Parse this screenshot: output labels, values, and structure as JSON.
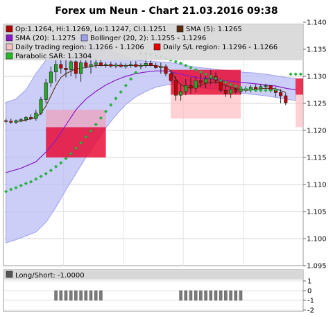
{
  "chart_data": {
    "type": "candlestick",
    "title": "Forex um Neun - Chart 21.03.2016 09:38",
    "legend": [
      {
        "label": "Op:1.1264, Hi:1.1269, Lo:1.1247, Cl:1.1251",
        "color": "#b40000"
      },
      {
        "label": "SMA (5): 1.1265",
        "color": "#5a2a0e"
      },
      {
        "label": "SMA (20): 1.1275",
        "color": "#8a18c8"
      },
      {
        "label": "Bollinger (20, 2): 1.1255 - 1.1296",
        "color": "#9ea0ee"
      },
      {
        "label": "Daily trading region: 1.1266 - 1.1206",
        "color": "#f4c0c4"
      },
      {
        "label": "Daily S/L region: 1.1296 - 1.1266",
        "color": "#e80000"
      },
      {
        "label": "Parabolic SAR: 1.1304",
        "color": "#22bb22"
      }
    ],
    "y_axis": {
      "min": 1.095,
      "max": 1.14,
      "ticks": [
        "1.095",
        "1.100",
        "1.105",
        "1.110",
        "1.115",
        "1.120",
        "1.125",
        "1.130",
        "1.135",
        "1.140"
      ]
    },
    "x_axis": {
      "min": 0,
      "max": 60
    },
    "candles": [
      {
        "o": 1.1218,
        "h": 1.1222,
        "l": 1.1213,
        "c": 1.1217
      },
      {
        "o": 1.1217,
        "h": 1.1222,
        "l": 1.1212,
        "c": 1.1215
      },
      {
        "o": 1.1215,
        "h": 1.122,
        "l": 1.1212,
        "c": 1.1218
      },
      {
        "o": 1.1218,
        "h": 1.1223,
        "l": 1.1215,
        "c": 1.122
      },
      {
        "o": 1.122,
        "h": 1.1227,
        "l": 1.1216,
        "c": 1.1224
      },
      {
        "o": 1.1224,
        "h": 1.123,
        "l": 1.1219,
        "c": 1.1222
      },
      {
        "o": 1.1222,
        "h": 1.1238,
        "l": 1.1218,
        "c": 1.1232
      },
      {
        "o": 1.1232,
        "h": 1.1262,
        "l": 1.1228,
        "c": 1.1257
      },
      {
        "o": 1.1257,
        "h": 1.1295,
        "l": 1.125,
        "c": 1.1288
      },
      {
        "o": 1.1288,
        "h": 1.1318,
        "l": 1.128,
        "c": 1.1308
      },
      {
        "o": 1.1308,
        "h": 1.1332,
        "l": 1.129,
        "c": 1.1322
      },
      {
        "o": 1.1322,
        "h": 1.1348,
        "l": 1.1305,
        "c": 1.1315
      },
      {
        "o": 1.1315,
        "h": 1.1332,
        "l": 1.1298,
        "c": 1.1312
      },
      {
        "o": 1.1312,
        "h": 1.1334,
        "l": 1.13,
        "c": 1.1327
      },
      {
        "o": 1.1327,
        "h": 1.1338,
        "l": 1.1296,
        "c": 1.1305
      },
      {
        "o": 1.1305,
        "h": 1.1332,
        "l": 1.129,
        "c": 1.1325
      },
      {
        "o": 1.1325,
        "h": 1.1345,
        "l": 1.1315,
        "c": 1.1318
      },
      {
        "o": 1.1318,
        "h": 1.1334,
        "l": 1.1305,
        "c": 1.1322
      },
      {
        "o": 1.1322,
        "h": 1.1333,
        "l": 1.1315,
        "c": 1.1325
      },
      {
        "o": 1.1325,
        "h": 1.1332,
        "l": 1.1318,
        "c": 1.132
      },
      {
        "o": 1.132,
        "h": 1.1326,
        "l": 1.1316,
        "c": 1.1322
      },
      {
        "o": 1.1322,
        "h": 1.1327,
        "l": 1.1316,
        "c": 1.1319
      },
      {
        "o": 1.1319,
        "h": 1.1325,
        "l": 1.1315,
        "c": 1.1321
      },
      {
        "o": 1.1321,
        "h": 1.1326,
        "l": 1.1316,
        "c": 1.1318
      },
      {
        "o": 1.1318,
        "h": 1.1324,
        "l": 1.1314,
        "c": 1.132
      },
      {
        "o": 1.132,
        "h": 1.1328,
        "l": 1.1316,
        "c": 1.1322
      },
      {
        "o": 1.1322,
        "h": 1.1328,
        "l": 1.1316,
        "c": 1.1318
      },
      {
        "o": 1.1318,
        "h": 1.1324,
        "l": 1.1313,
        "c": 1.132
      },
      {
        "o": 1.132,
        "h": 1.134,
        "l": 1.1316,
        "c": 1.1324
      },
      {
        "o": 1.1324,
        "h": 1.133,
        "l": 1.1318,
        "c": 1.132
      },
      {
        "o": 1.132,
        "h": 1.1325,
        "l": 1.1314,
        "c": 1.1316
      },
      {
        "o": 1.1316,
        "h": 1.1325,
        "l": 1.1305,
        "c": 1.1318
      },
      {
        "o": 1.1318,
        "h": 1.1322,
        "l": 1.13,
        "c": 1.1305
      },
      {
        "o": 1.1305,
        "h": 1.1312,
        "l": 1.129,
        "c": 1.1292
      },
      {
        "o": 1.1292,
        "h": 1.13,
        "l": 1.1255,
        "c": 1.1265
      },
      {
        "o": 1.1265,
        "h": 1.1285,
        "l": 1.1255,
        "c": 1.1272
      },
      {
        "o": 1.1272,
        "h": 1.1295,
        "l": 1.1265,
        "c": 1.1283
      },
      {
        "o": 1.1283,
        "h": 1.1298,
        "l": 1.1268,
        "c": 1.1278
      },
      {
        "o": 1.1278,
        "h": 1.13,
        "l": 1.127,
        "c": 1.1292
      },
      {
        "o": 1.1292,
        "h": 1.1305,
        "l": 1.128,
        "c": 1.1288
      },
      {
        "o": 1.1288,
        "h": 1.1302,
        "l": 1.1278,
        "c": 1.1295
      },
      {
        "o": 1.1295,
        "h": 1.1312,
        "l": 1.1285,
        "c": 1.13
      },
      {
        "o": 1.13,
        "h": 1.1307,
        "l": 1.1286,
        "c": 1.1292
      },
      {
        "o": 1.1292,
        "h": 1.1296,
        "l": 1.127,
        "c": 1.1274
      },
      {
        "o": 1.1274,
        "h": 1.1284,
        "l": 1.1262,
        "c": 1.1268
      },
      {
        "o": 1.1268,
        "h": 1.128,
        "l": 1.126,
        "c": 1.1276
      },
      {
        "o": 1.1276,
        "h": 1.1282,
        "l": 1.1268,
        "c": 1.1272
      },
      {
        "o": 1.1272,
        "h": 1.128,
        "l": 1.1266,
        "c": 1.1277
      },
      {
        "o": 1.1277,
        "h": 1.1282,
        "l": 1.127,
        "c": 1.1275
      },
      {
        "o": 1.1275,
        "h": 1.1284,
        "l": 1.127,
        "c": 1.128
      },
      {
        "o": 1.128,
        "h": 1.1285,
        "l": 1.1274,
        "c": 1.1277
      },
      {
        "o": 1.1277,
        "h": 1.1286,
        "l": 1.1272,
        "c": 1.1281
      },
      {
        "o": 1.1281,
        "h": 1.1286,
        "l": 1.1276,
        "c": 1.1283
      },
      {
        "o": 1.1283,
        "h": 1.1284,
        "l": 1.127,
        "c": 1.1274
      },
      {
        "o": 1.1274,
        "h": 1.128,
        "l": 1.1262,
        "c": 1.127
      },
      {
        "o": 1.127,
        "h": 1.1276,
        "l": 1.125,
        "c": 1.1264
      },
      {
        "o": 1.1264,
        "h": 1.1269,
        "l": 1.1247,
        "c": 1.1251
      }
    ],
    "sma5": [
      [
        2,
        1.1216
      ],
      [
        4,
        1.1219
      ],
      [
        6,
        1.1224
      ],
      [
        7,
        1.1232
      ],
      [
        8,
        1.1245
      ],
      [
        9,
        1.1264
      ],
      [
        10,
        1.1283
      ],
      [
        11,
        1.1298
      ],
      [
        12,
        1.1305
      ],
      [
        14,
        1.1314
      ],
      [
        16,
        1.1316
      ],
      [
        18,
        1.132
      ],
      [
        20,
        1.132
      ],
      [
        22,
        1.132
      ],
      [
        24,
        1.132
      ],
      [
        26,
        1.132
      ],
      [
        28,
        1.132
      ],
      [
        30,
        1.132
      ],
      [
        32,
        1.1316
      ],
      [
        33,
        1.131
      ],
      [
        34,
        1.1295
      ],
      [
        35,
        1.1285
      ],
      [
        36,
        1.1279
      ],
      [
        38,
        1.128
      ],
      [
        40,
        1.1287
      ],
      [
        42,
        1.129
      ],
      [
        44,
        1.1283
      ],
      [
        46,
        1.1277
      ],
      [
        48,
        1.1274
      ],
      [
        50,
        1.1276
      ],
      [
        52,
        1.1278
      ],
      [
        54,
        1.1277
      ],
      [
        56,
        1.127
      ]
    ],
    "sma20": [
      [
        0,
        1.1122
      ],
      [
        3,
        1.113
      ],
      [
        6,
        1.1142
      ],
      [
        8,
        1.116
      ],
      [
        10,
        1.1182
      ],
      [
        12,
        1.121
      ],
      [
        14,
        1.1238
      ],
      [
        16,
        1.1258
      ],
      [
        18,
        1.1272
      ],
      [
        20,
        1.1284
      ],
      [
        22,
        1.1293
      ],
      [
        24,
        1.13
      ],
      [
        26,
        1.1305
      ],
      [
        28,
        1.1308
      ],
      [
        30,
        1.131
      ],
      [
        32,
        1.131
      ],
      [
        34,
        1.1306
      ],
      [
        36,
        1.1302
      ],
      [
        38,
        1.1298
      ],
      [
        40,
        1.1296
      ],
      [
        42,
        1.1294
      ],
      [
        44,
        1.1292
      ],
      [
        46,
        1.129
      ],
      [
        48,
        1.1288
      ],
      [
        50,
        1.1286
      ],
      [
        52,
        1.1284
      ],
      [
        54,
        1.1282
      ],
      [
        56,
        1.1278
      ],
      [
        58,
        1.1275
      ]
    ],
    "boll_upper": [
      [
        0,
        1.1252
      ],
      [
        2,
        1.1258
      ],
      [
        4,
        1.1275
      ],
      [
        6,
        1.1305
      ],
      [
        8,
        1.133
      ],
      [
        10,
        1.1352
      ],
      [
        12,
        1.1366
      ],
      [
        14,
        1.1372
      ],
      [
        16,
        1.137
      ],
      [
        18,
        1.1363
      ],
      [
        20,
        1.1352
      ],
      [
        22,
        1.1343
      ],
      [
        24,
        1.1336
      ],
      [
        26,
        1.133
      ],
      [
        28,
        1.1328
      ],
      [
        30,
        1.1327
      ],
      [
        32,
        1.1326
      ],
      [
        34,
        1.1324
      ],
      [
        36,
        1.132
      ],
      [
        38,
        1.1317
      ],
      [
        40,
        1.1315
      ],
      [
        42,
        1.1313
      ],
      [
        44,
        1.1311
      ],
      [
        46,
        1.1309
      ],
      [
        48,
        1.1307
      ],
      [
        50,
        1.1306
      ],
      [
        52,
        1.1304
      ],
      [
        54,
        1.1301
      ],
      [
        56,
        1.1298
      ],
      [
        58,
        1.1296
      ]
    ],
    "boll_lower": [
      [
        0,
        1.0992
      ],
      [
        2,
        1.0998
      ],
      [
        4,
        1.1005
      ],
      [
        6,
        1.1012
      ],
      [
        8,
        1.103
      ],
      [
        10,
        1.1058
      ],
      [
        12,
        1.109
      ],
      [
        14,
        1.112
      ],
      [
        16,
        1.115
      ],
      [
        18,
        1.1178
      ],
      [
        20,
        1.1205
      ],
      [
        22,
        1.1228
      ],
      [
        24,
        1.1248
      ],
      [
        26,
        1.1262
      ],
      [
        28,
        1.1272
      ],
      [
        30,
        1.128
      ],
      [
        32,
        1.1284
      ],
      [
        34,
        1.1286
      ],
      [
        36,
        1.1284
      ],
      [
        38,
        1.128
      ],
      [
        40,
        1.1278
      ],
      [
        42,
        1.1276
      ],
      [
        44,
        1.1272
      ],
      [
        46,
        1.127
      ],
      [
        48,
        1.1268
      ],
      [
        50,
        1.1266
      ],
      [
        52,
        1.1264
      ],
      [
        54,
        1.1261
      ],
      [
        56,
        1.1258
      ],
      [
        58,
        1.1255
      ]
    ],
    "parabolic_sar": [
      [
        0,
        1.1087
      ],
      [
        1,
        1.1091
      ],
      [
        2,
        1.1094
      ],
      [
        3,
        1.1098
      ],
      [
        4,
        1.1102
      ],
      [
        5,
        1.1105
      ],
      [
        6,
        1.111
      ],
      [
        7,
        1.1115
      ],
      [
        8,
        1.112
      ],
      [
        9,
        1.1126
      ],
      [
        10,
        1.1133
      ],
      [
        11,
        1.114
      ],
      [
        12,
        1.1148
      ],
      [
        13,
        1.1157
      ],
      [
        14,
        1.1167
      ],
      [
        15,
        1.1177
      ],
      [
        16,
        1.1188
      ],
      [
        17,
        1.1199
      ],
      [
        18,
        1.1211
      ],
      [
        19,
        1.1223
      ],
      [
        20,
        1.1235
      ],
      [
        21,
        1.1247
      ],
      [
        22,
        1.1259
      ],
      [
        23,
        1.1271
      ],
      [
        24,
        1.1283
      ],
      [
        25,
        1.1295
      ],
      [
        26,
        1.1307
      ],
      [
        27,
        1.1343
      ],
      [
        28,
        1.1342
      ],
      [
        29,
        1.134
      ],
      [
        30,
        1.1338
      ],
      [
        31,
        1.1336
      ],
      [
        32,
        1.1333
      ],
      [
        33,
        1.133
      ],
      [
        34,
        1.1327
      ],
      [
        35,
        1.1324
      ],
      [
        36,
        1.132
      ],
      [
        37,
        1.1316
      ],
      [
        38,
        1.1312
      ],
      [
        39,
        1.1308
      ],
      [
        40,
        1.1304
      ],
      [
        41,
        1.13
      ],
      [
        42,
        1.1296
      ],
      [
        43,
        1.1292
      ],
      [
        44,
        1.1289
      ],
      [
        45,
        1.1285
      ],
      [
        46,
        1.1282
      ],
      [
        47,
        1.1279
      ],
      [
        48,
        1.1276
      ],
      [
        49,
        1.1275
      ],
      [
        50,
        1.1274
      ],
      [
        51,
        1.1274
      ],
      [
        52,
        1.1274
      ],
      [
        53,
        1.1274
      ],
      [
        54,
        1.1275
      ],
      [
        57,
        1.1304
      ],
      [
        58,
        1.1304
      ],
      [
        59,
        1.1304
      ]
    ],
    "regions": [
      {
        "kind": "trading",
        "x0": 8.5,
        "x1": 20.5,
        "y0": 1.1206,
        "y1": 1.1238
      },
      {
        "kind": "stoploss",
        "x0": 8.5,
        "x1": 20.5,
        "y0": 1.115,
        "y1": 1.1206
      },
      {
        "kind": "stoploss_light",
        "x0": 8.5,
        "x1": 20.5,
        "y0": 1.1206,
        "y1": 1.1238
      },
      {
        "kind": "trading",
        "x0": 33.5,
        "x1": 47.5,
        "y0": 1.1222,
        "y1": 1.1266
      },
      {
        "kind": "stoploss",
        "x0": 33.5,
        "x1": 47.5,
        "y0": 1.1266,
        "y1": 1.1312
      },
      {
        "kind": "trading",
        "x0": 58.5,
        "x1": 60,
        "y0": 1.1206,
        "y1": 1.1266
      },
      {
        "kind": "stoploss",
        "x0": 58.5,
        "x1": 60,
        "y0": 1.1266,
        "y1": 1.1296
      }
    ],
    "long_short": {
      "label": "Long/Short: -1.0000",
      "y_ticks": [
        "1",
        "0",
        "-1",
        "-2"
      ],
      "bars": [
        {
          "x0": 10,
          "x1": 19,
          "value": -1
        },
        {
          "x0": 35,
          "x1": 47,
          "value": -1
        }
      ]
    }
  }
}
